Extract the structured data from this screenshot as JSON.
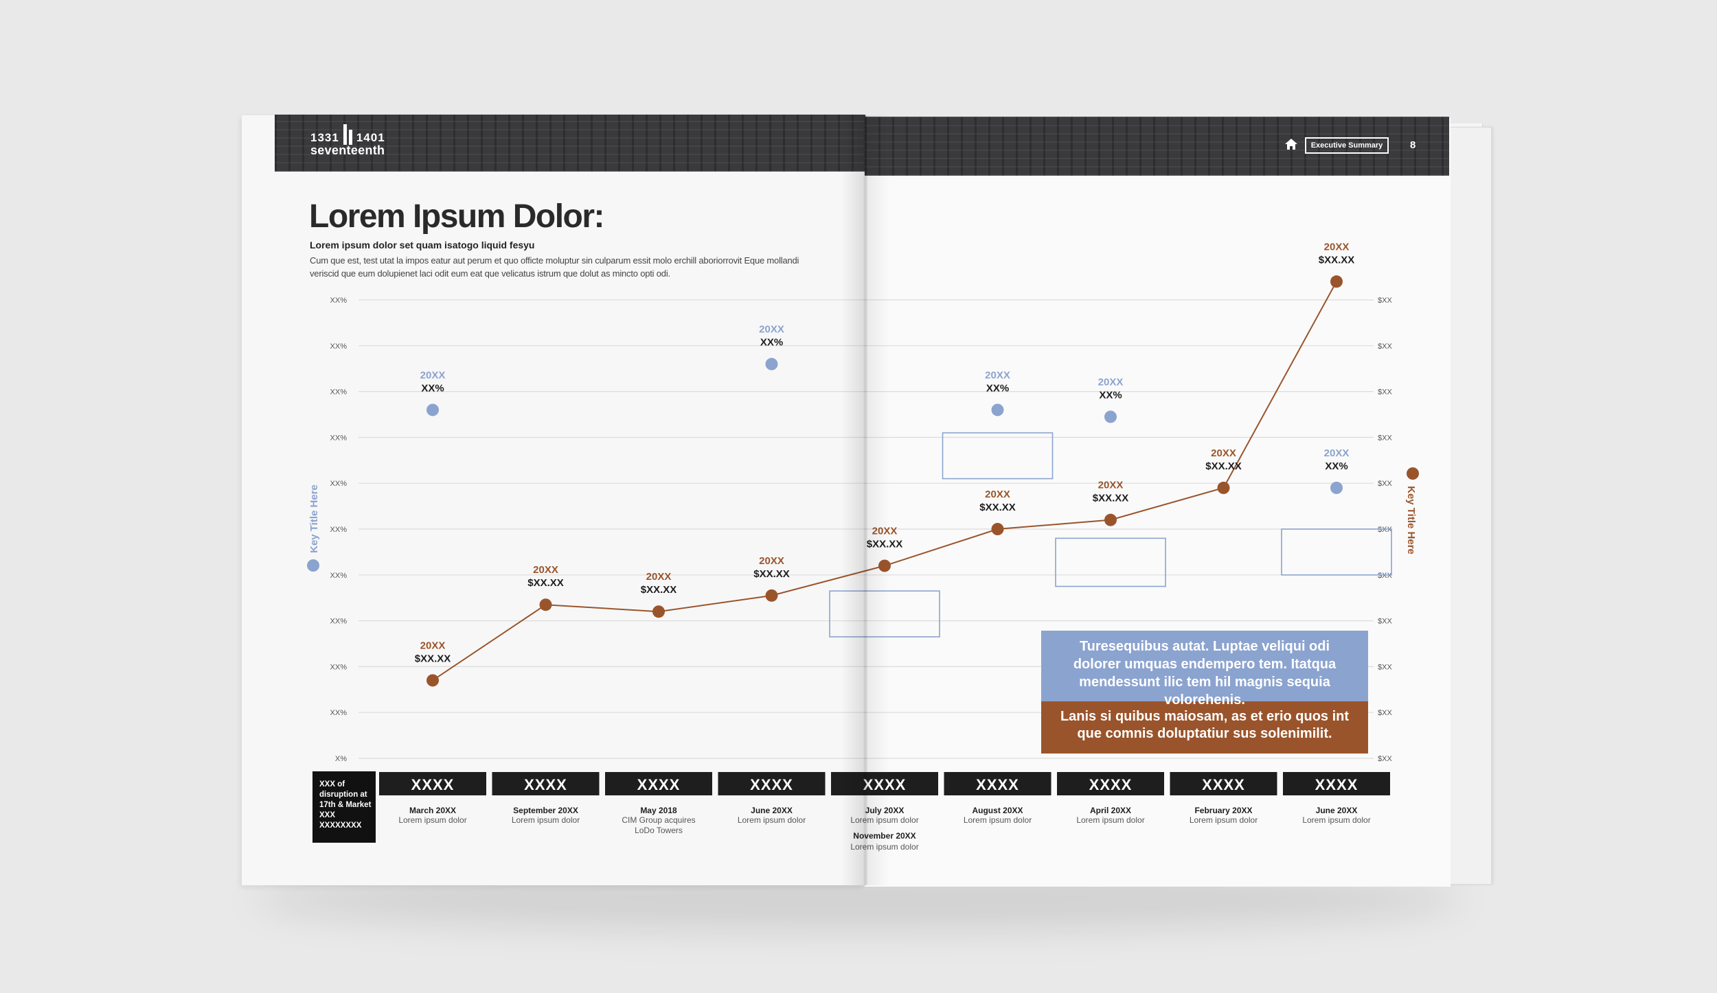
{
  "header": {
    "logo": {
      "left_number": "1331",
      "right_number": "1401",
      "word": "seventeenth"
    },
    "section_label": "Executive Summary",
    "page_number": "8",
    "home_icon": "home-icon"
  },
  "content": {
    "title": "Lorem Ipsum Dolor:",
    "subtitle": "Lorem ipsum dolor set quam isatogo liquid fesyu",
    "body": "Cum que est, test utat la impos eatur aut perum et quo officte moluptur sin culparum essit molo erchill aboriorrovit Eque mollandi veriscid que eum dolupienet laci odit eum eat que velicatus istrum que dolut as mincto opti odi."
  },
  "disruption_box": {
    "lines": [
      "XXX of",
      "disruption at",
      "17th & Market",
      "XXX",
      "XXXXXXXX"
    ]
  },
  "callout": {
    "blue_text": "Turesequibus autat. Luptae veliqui odi dolorer umquas endempero tem. Itatqua mendessunt ilic tem hil magnis sequia volorehenis.",
    "orange_text": "Lanis si quibus maiosam, as et erio quos int que comnis doluptatiur sus solenimilit."
  },
  "colors": {
    "blue": "#8ba3cf",
    "orange": "#9a542b",
    "dark": "#1e1e1e",
    "grid": "#dcdcdc"
  },
  "chart_data": {
    "type": "line",
    "left_axis": {
      "label": "Key Title Here",
      "ticks": [
        "X%",
        "XX%",
        "XX%",
        "XX%",
        "XX%",
        "XX%",
        "XX%",
        "XX%",
        "XX%",
        "XX%",
        "XX%"
      ]
    },
    "right_axis": {
      "label": "Key Title Here",
      "ticks": [
        "$XX",
        "$XX",
        "$XX",
        "$XX",
        "$XX",
        "$XX",
        "$XX",
        "$XX",
        "$XX",
        "$XX",
        "$XX"
      ]
    },
    "ylim": [
      0,
      10
    ],
    "grid": true,
    "categories": [
      {
        "label": "XXXX",
        "date": "March 20XX",
        "desc": [
          "Lorem ipsum dolor"
        ],
        "highlight": false
      },
      {
        "label": "XXXX",
        "date": "September 20XX",
        "desc": [
          "Lorem ipsum dolor"
        ],
        "highlight": false
      },
      {
        "label": "XXXX",
        "date": "May 2018",
        "desc": [
          "CIM Group acquires",
          "LoDo Towers"
        ],
        "highlight": true
      },
      {
        "label": "XXXX",
        "date": "June 20XX",
        "desc": [
          "Lorem ipsum dolor"
        ],
        "highlight": false
      },
      {
        "label": "XXXX",
        "date": "July 20XX",
        "desc": [
          "Lorem ipsum dolor"
        ],
        "highlight": false
      },
      {
        "label": "XXXX",
        "date": "August 20XX",
        "desc": [
          "Lorem ipsum dolor"
        ],
        "highlight": false
      },
      {
        "label": "XXXX",
        "date": "April 20XX",
        "desc": [
          "Lorem ipsum dolor"
        ],
        "highlight": false
      },
      {
        "label": "XXXX",
        "date": "February 20XX",
        "desc": [
          "Lorem ipsum dolor"
        ],
        "highlight": false
      },
      {
        "label": "XXXX",
        "date": "June 20XX",
        "desc": [
          "Lorem ipsum dolor"
        ],
        "highlight": false
      }
    ],
    "extra_event": {
      "date": "November 20XX",
      "desc": "Lorem ipsum dolor",
      "after_category": 4
    },
    "series": [
      {
        "name": "Key Title Here",
        "axis": "left",
        "color": "#8ba3cf",
        "style": "points",
        "points": [
          {
            "i": 0,
            "value": 7.6,
            "year": "20XX",
            "text": "XX%"
          },
          {
            "i": 3,
            "value": 8.6,
            "year": "20XX",
            "text": "XX%"
          },
          {
            "i": 5,
            "value": 7.6,
            "year": "20XX",
            "text": "XX%"
          },
          {
            "i": 6,
            "value": 7.45,
            "year": "20XX",
            "text": "XX%"
          },
          {
            "i": 8,
            "value": 5.9,
            "year": "20XX",
            "text": "XX%"
          }
        ]
      },
      {
        "name": "Key Title Here",
        "axis": "right",
        "color": "#9a542b",
        "style": "line",
        "points": [
          {
            "i": 0,
            "value": 1.7,
            "year": "20XX",
            "text": "$XX.XX"
          },
          {
            "i": 1,
            "value": 3.35,
            "year": "20XX",
            "text": "$XX.XX"
          },
          {
            "i": 2,
            "value": 3.2,
            "year": "20XX",
            "text": "$XX.XX"
          },
          {
            "i": 3,
            "value": 3.55,
            "year": "20XX",
            "text": "$XX.XX"
          },
          {
            "i": 4,
            "value": 4.2,
            "year": "20XX",
            "text": "$XX.XX"
          },
          {
            "i": 5,
            "value": 5.0,
            "year": "20XX",
            "text": "$XX.XX"
          },
          {
            "i": 6,
            "value": 5.2,
            "year": "20XX",
            "text": "$XX.XX"
          },
          {
            "i": 7,
            "value": 5.9,
            "year": "20XX",
            "text": "$XX.XX"
          },
          {
            "i": 8,
            "value": 10.4,
            "year": "20XX",
            "text": "$XX.XX"
          }
        ]
      }
    ],
    "range_boxes": [
      {
        "i": 4,
        "low": 2.65,
        "high": 3.65
      },
      {
        "i": 5,
        "low": 6.1,
        "high": 7.1
      },
      {
        "i": 6,
        "low": 3.75,
        "high": 4.8
      },
      {
        "i": 8,
        "low": 4.0,
        "high": 5.0
      }
    ]
  }
}
